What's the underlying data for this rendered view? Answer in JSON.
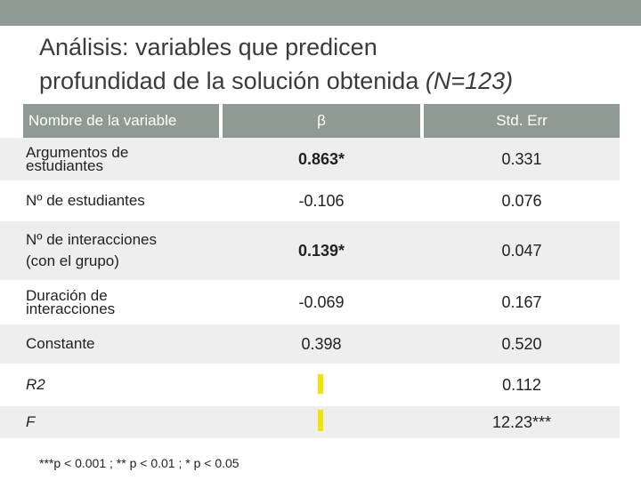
{
  "title": {
    "line1": "Análisis: variables que predicen",
    "line2_main": "profundidad de la solución obtenida ",
    "line2_n": "(N=123)"
  },
  "table": {
    "headers": [
      "Nombre de la variable",
      "β",
      "Std. Err"
    ],
    "rows": [
      {
        "name_lines": [
          "Argumentos de",
          "estudiantes"
        ],
        "beta": "0.863*",
        "err": "0.331"
      },
      {
        "name_lines": [
          "Nº de estudiantes"
        ],
        "beta": "-0.106",
        "err": "0.076"
      },
      {
        "name_lines": [
          "Nº de interacciones",
          "(con el grupo)"
        ],
        "beta": "0.139*",
        "err": "0.047"
      },
      {
        "name_lines": [
          "Duración de",
          "interacciones"
        ],
        "beta": "-0.069",
        "err": "0.167"
      },
      {
        "name_lines": [
          "Constante"
        ],
        "beta": "0.398",
        "err": "0.520"
      },
      {
        "name_lines": [
          "R2"
        ],
        "beta": "",
        "err": "0.112"
      },
      {
        "name_lines": [
          "F"
        ],
        "beta": "",
        "err": "12.23***"
      }
    ]
  },
  "footnote": "***p < 0.001 ;  ** p < 0.01  ; * p < 0.05",
  "colors": {
    "header_bg": "#8e9a93",
    "shade_row": "#eeeeee",
    "marker": "#f2e600"
  }
}
